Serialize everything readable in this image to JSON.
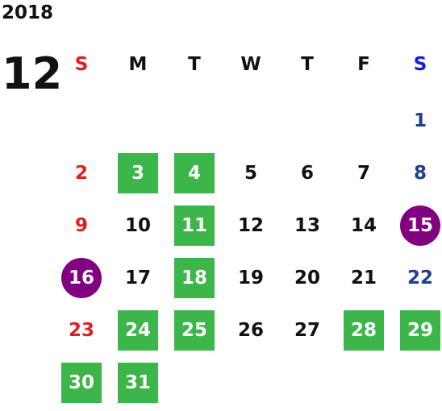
{
  "calendar": {
    "year": "2018",
    "month": "12",
    "weekdays": [
      {
        "label": "S",
        "color": "#e02020"
      },
      {
        "label": "M",
        "color": "#111111"
      },
      {
        "label": "T",
        "color": "#111111"
      },
      {
        "label": "W",
        "color": "#111111"
      },
      {
        "label": "T",
        "color": "#111111"
      },
      {
        "label": "F",
        "color": "#111111"
      },
      {
        "label": "S",
        "color": "#1a1adc"
      }
    ],
    "colors": {
      "sunday": "#e02020",
      "saturday_header": "#1a1adc",
      "saturday_date": "#1f3f8f",
      "weekday": "#111111",
      "green_highlight": "#3cb54a",
      "purple_highlight": "#800080"
    },
    "days": [
      {
        "label": "1",
        "week": 0,
        "dow": 6,
        "style": "plain",
        "color": "#1f3f8f"
      },
      {
        "label": "2",
        "week": 1,
        "dow": 0,
        "style": "plain",
        "color": "#e02020"
      },
      {
        "label": "3",
        "week": 1,
        "dow": 1,
        "style": "green"
      },
      {
        "label": "4",
        "week": 1,
        "dow": 2,
        "style": "green"
      },
      {
        "label": "5",
        "week": 1,
        "dow": 3,
        "style": "plain",
        "color": "#111111"
      },
      {
        "label": "6",
        "week": 1,
        "dow": 4,
        "style": "plain",
        "color": "#111111"
      },
      {
        "label": "7",
        "week": 1,
        "dow": 5,
        "style": "plain",
        "color": "#111111"
      },
      {
        "label": "8",
        "week": 1,
        "dow": 6,
        "style": "plain",
        "color": "#1f3f8f"
      },
      {
        "label": "9",
        "week": 2,
        "dow": 0,
        "style": "plain",
        "color": "#e02020"
      },
      {
        "label": "10",
        "week": 2,
        "dow": 1,
        "style": "plain",
        "color": "#111111"
      },
      {
        "label": "11",
        "week": 2,
        "dow": 2,
        "style": "green"
      },
      {
        "label": "12",
        "week": 2,
        "dow": 3,
        "style": "plain",
        "color": "#111111"
      },
      {
        "label": "13",
        "week": 2,
        "dow": 4,
        "style": "plain",
        "color": "#111111"
      },
      {
        "label": "14",
        "week": 2,
        "dow": 5,
        "style": "plain",
        "color": "#111111"
      },
      {
        "label": "15",
        "week": 2,
        "dow": 6,
        "style": "circle"
      },
      {
        "label": "16",
        "week": 3,
        "dow": 0,
        "style": "circle"
      },
      {
        "label": "17",
        "week": 3,
        "dow": 1,
        "style": "plain",
        "color": "#111111"
      },
      {
        "label": "18",
        "week": 3,
        "dow": 2,
        "style": "green"
      },
      {
        "label": "19",
        "week": 3,
        "dow": 3,
        "style": "plain",
        "color": "#111111"
      },
      {
        "label": "20",
        "week": 3,
        "dow": 4,
        "style": "plain",
        "color": "#111111"
      },
      {
        "label": "21",
        "week": 3,
        "dow": 5,
        "style": "plain",
        "color": "#111111"
      },
      {
        "label": "22",
        "week": 3,
        "dow": 6,
        "style": "plain",
        "color": "#1f3f8f"
      },
      {
        "label": "23",
        "week": 4,
        "dow": 0,
        "style": "plain",
        "color": "#e02020"
      },
      {
        "label": "24",
        "week": 4,
        "dow": 1,
        "style": "green"
      },
      {
        "label": "25",
        "week": 4,
        "dow": 2,
        "style": "green"
      },
      {
        "label": "26",
        "week": 4,
        "dow": 3,
        "style": "plain",
        "color": "#111111"
      },
      {
        "label": "27",
        "week": 4,
        "dow": 4,
        "style": "plain",
        "color": "#111111"
      },
      {
        "label": "28",
        "week": 4,
        "dow": 5,
        "style": "green"
      },
      {
        "label": "29",
        "week": 4,
        "dow": 6,
        "style": "green"
      },
      {
        "label": "30",
        "week": 5,
        "dow": 0,
        "style": "green"
      },
      {
        "label": "31",
        "week": 5,
        "dow": 1,
        "style": "green"
      }
    ]
  }
}
